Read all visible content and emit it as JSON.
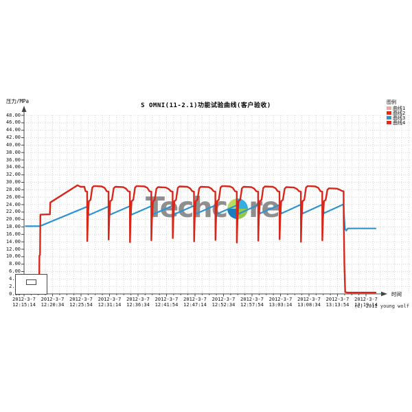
{
  "page": {
    "copyright": "(C) 2011 young wolf"
  },
  "chart_data": {
    "type": "line",
    "title": "S OMNI(11-2.1)功能试验曲线(客户验收)",
    "ylabel": "压力/MPa",
    "xlabel": "时间",
    "ylim": [
      0,
      48
    ],
    "ytick_step": 2,
    "x_minutes_span": 64,
    "grid": true,
    "grid_color": "#d2d2d2",
    "axis_color": "#444444",
    "watermark": "Techcore",
    "watermark_left": "Techc",
    "watermark_right": "re",
    "x_ticks": [
      {
        "date": "2012-3-7",
        "time": "12:15:14"
      },
      {
        "date": "2012-3-7",
        "time": "12:20:34"
      },
      {
        "date": "2012-3-7",
        "time": "12:25:54"
      },
      {
        "date": "2012-3-7",
        "time": "12:31:14"
      },
      {
        "date": "2012-3-7",
        "time": "12:36:34"
      },
      {
        "date": "2012-3-7",
        "time": "12:41:54"
      },
      {
        "date": "2012-3-7",
        "time": "12:47:14"
      },
      {
        "date": "2012-3-7",
        "time": "12:52:34"
      },
      {
        "date": "2012-3-7",
        "time": "12:57:54"
      },
      {
        "date": "2012-3-7",
        "time": "13:03:14"
      },
      {
        "date": "2012-3-7",
        "time": "13:08:34"
      },
      {
        "date": "2012-3-7",
        "time": "13:13:54"
      },
      {
        "date": "2012-3-7",
        "time": "13:19:14"
      }
    ],
    "legend": {
      "title": "图例",
      "position": "top-right",
      "entries": [
        {
          "label": "曲线1",
          "color": "#f2a49b"
        },
        {
          "label": "曲线2",
          "color": "#e02b1d"
        },
        {
          "label": "曲线3",
          "color": "#2e93d2"
        },
        {
          "label": "曲线4",
          "color": "#e02b1d"
        }
      ]
    },
    "series": [
      {
        "name": "曲线3",
        "color": "#2e93d2",
        "width": 2.2,
        "points": [
          [
            0.3,
            18.2
          ],
          [
            2.9,
            18.2
          ],
          [
            3.3,
            18.4
          ],
          [
            11.7,
            23.4
          ],
          [
            11.83,
            23.4
          ],
          [
            12.13,
            21.2
          ],
          [
            15.78,
            23.5
          ],
          [
            16.13,
            21.3
          ],
          [
            19.78,
            23.6
          ],
          [
            20.13,
            21.3
          ],
          [
            23.78,
            23.6
          ],
          [
            24.13,
            21.4
          ],
          [
            27.78,
            23.7
          ],
          [
            28.13,
            21.4
          ],
          [
            31.78,
            23.7
          ],
          [
            32.13,
            21.5
          ],
          [
            35.78,
            23.8
          ],
          [
            36.13,
            21.5
          ],
          [
            39.78,
            23.8
          ],
          [
            40.13,
            21.5
          ],
          [
            43.78,
            23.9
          ],
          [
            44.13,
            21.6
          ],
          [
            47.78,
            23.9
          ],
          [
            48.13,
            21.6
          ],
          [
            51.78,
            24.0
          ],
          [
            52.13,
            21.6
          ],
          [
            55.78,
            24.0
          ],
          [
            56.13,
            21.7
          ],
          [
            59.78,
            24.1
          ],
          [
            60.05,
            17.6
          ],
          [
            60.3,
            17.0
          ],
          [
            60.6,
            17.6
          ],
          [
            65.8,
            17.6
          ]
        ]
      },
      {
        "name": "曲线2",
        "color": "#d8261a",
        "width": 2.4,
        "points": [
          [
            2.83,
            0.0
          ],
          [
            2.88,
            10.3
          ],
          [
            3.0,
            10.5
          ],
          [
            3.06,
            21.3
          ],
          [
            4.85,
            21.4
          ],
          [
            4.92,
            24.6
          ],
          [
            10.0,
            29.2
          ],
          [
            10.6,
            28.8
          ],
          [
            11.3,
            28.8
          ],
          [
            11.5,
            27.6
          ],
          [
            11.81,
            27.5
          ],
          [
            11.83,
            14.2
          ],
          [
            11.95,
            20.3
          ],
          [
            12.13,
            24.9
          ],
          [
            12.45,
            25.3
          ],
          [
            12.78,
            28.6
          ],
          [
            13.08,
            29.0
          ],
          [
            14.53,
            28.9
          ],
          [
            15.08,
            28.5
          ],
          [
            15.48,
            27.6
          ],
          [
            15.81,
            27.5
          ],
          [
            15.83,
            14.6
          ],
          [
            15.95,
            20.3
          ],
          [
            16.13,
            24.9
          ],
          [
            16.45,
            25.3
          ],
          [
            16.78,
            28.4
          ],
          [
            17.08,
            28.8
          ],
          [
            18.53,
            28.7
          ],
          [
            19.08,
            28.3
          ],
          [
            19.48,
            27.6
          ],
          [
            19.81,
            27.5
          ],
          [
            19.83,
            13.9
          ],
          [
            19.95,
            20.3
          ],
          [
            20.13,
            24.9
          ],
          [
            20.45,
            25.3
          ],
          [
            20.78,
            28.6
          ],
          [
            21.08,
            29.0
          ],
          [
            22.53,
            28.9
          ],
          [
            23.08,
            28.5
          ],
          [
            23.48,
            27.6
          ],
          [
            23.81,
            27.5
          ],
          [
            23.83,
            14.4
          ],
          [
            23.95,
            20.3
          ],
          [
            24.13,
            24.9
          ],
          [
            24.45,
            25.3
          ],
          [
            24.78,
            28.3
          ],
          [
            25.08,
            28.7
          ],
          [
            26.53,
            28.6
          ],
          [
            27.08,
            28.2
          ],
          [
            27.48,
            27.6
          ],
          [
            27.81,
            27.5
          ],
          [
            27.83,
            15.0
          ],
          [
            27.95,
            20.3
          ],
          [
            28.13,
            24.9
          ],
          [
            28.45,
            25.3
          ],
          [
            28.78,
            28.5
          ],
          [
            29.08,
            28.9
          ],
          [
            30.53,
            28.8
          ],
          [
            31.08,
            28.4
          ],
          [
            31.48,
            27.6
          ],
          [
            31.81,
            27.5
          ],
          [
            31.83,
            14.1
          ],
          [
            31.95,
            20.3
          ],
          [
            32.13,
            24.9
          ],
          [
            32.45,
            25.3
          ],
          [
            32.78,
            28.4
          ],
          [
            33.08,
            28.8
          ],
          [
            34.53,
            28.7
          ],
          [
            35.08,
            28.3
          ],
          [
            35.48,
            27.6
          ],
          [
            35.81,
            27.5
          ],
          [
            35.83,
            14.5
          ],
          [
            35.95,
            20.3
          ],
          [
            36.13,
            24.9
          ],
          [
            36.45,
            25.3
          ],
          [
            36.78,
            28.6
          ],
          [
            37.08,
            29.0
          ],
          [
            38.53,
            28.9
          ],
          [
            39.08,
            28.5
          ],
          [
            39.48,
            27.6
          ],
          [
            39.81,
            27.5
          ],
          [
            39.83,
            13.8
          ],
          [
            39.95,
            20.3
          ],
          [
            40.13,
            24.9
          ],
          [
            40.45,
            25.3
          ],
          [
            40.78,
            28.4
          ],
          [
            41.08,
            28.8
          ],
          [
            42.53,
            28.7
          ],
          [
            43.08,
            28.3
          ],
          [
            43.48,
            27.6
          ],
          [
            43.81,
            27.5
          ],
          [
            43.83,
            14.3
          ],
          [
            43.95,
            20.3
          ],
          [
            44.13,
            24.9
          ],
          [
            44.45,
            25.3
          ],
          [
            44.78,
            28.5
          ],
          [
            45.08,
            28.9
          ],
          [
            46.53,
            28.8
          ],
          [
            47.08,
            28.4
          ],
          [
            47.48,
            27.6
          ],
          [
            47.81,
            27.5
          ],
          [
            47.83,
            14.7
          ],
          [
            47.95,
            20.3
          ],
          [
            48.13,
            24.9
          ],
          [
            48.45,
            25.3
          ],
          [
            48.78,
            28.3
          ],
          [
            49.08,
            28.7
          ],
          [
            50.53,
            28.6
          ],
          [
            51.08,
            28.2
          ],
          [
            51.48,
            27.6
          ],
          [
            51.81,
            27.5
          ],
          [
            51.83,
            14.0
          ],
          [
            51.95,
            20.3
          ],
          [
            52.13,
            24.9
          ],
          [
            52.45,
            25.3
          ],
          [
            52.78,
            28.6
          ],
          [
            53.08,
            29.0
          ],
          [
            54.53,
            28.9
          ],
          [
            55.08,
            28.5
          ],
          [
            55.48,
            27.6
          ],
          [
            55.81,
            27.5
          ],
          [
            55.83,
            14.4
          ],
          [
            55.95,
            20.3
          ],
          [
            56.13,
            24.9
          ],
          [
            56.45,
            25.3
          ],
          [
            56.78,
            28.0
          ],
          [
            57.08,
            28.4
          ],
          [
            58.53,
            28.3
          ],
          [
            59.08,
            28.0
          ],
          [
            59.48,
            27.7
          ],
          [
            59.81,
            27.6
          ],
          [
            59.83,
            20.0
          ],
          [
            59.95,
            8.0
          ],
          [
            60.1,
            0.5
          ],
          [
            60.5,
            0.35
          ],
          [
            65.8,
            0.35
          ]
        ]
      }
    ]
  }
}
